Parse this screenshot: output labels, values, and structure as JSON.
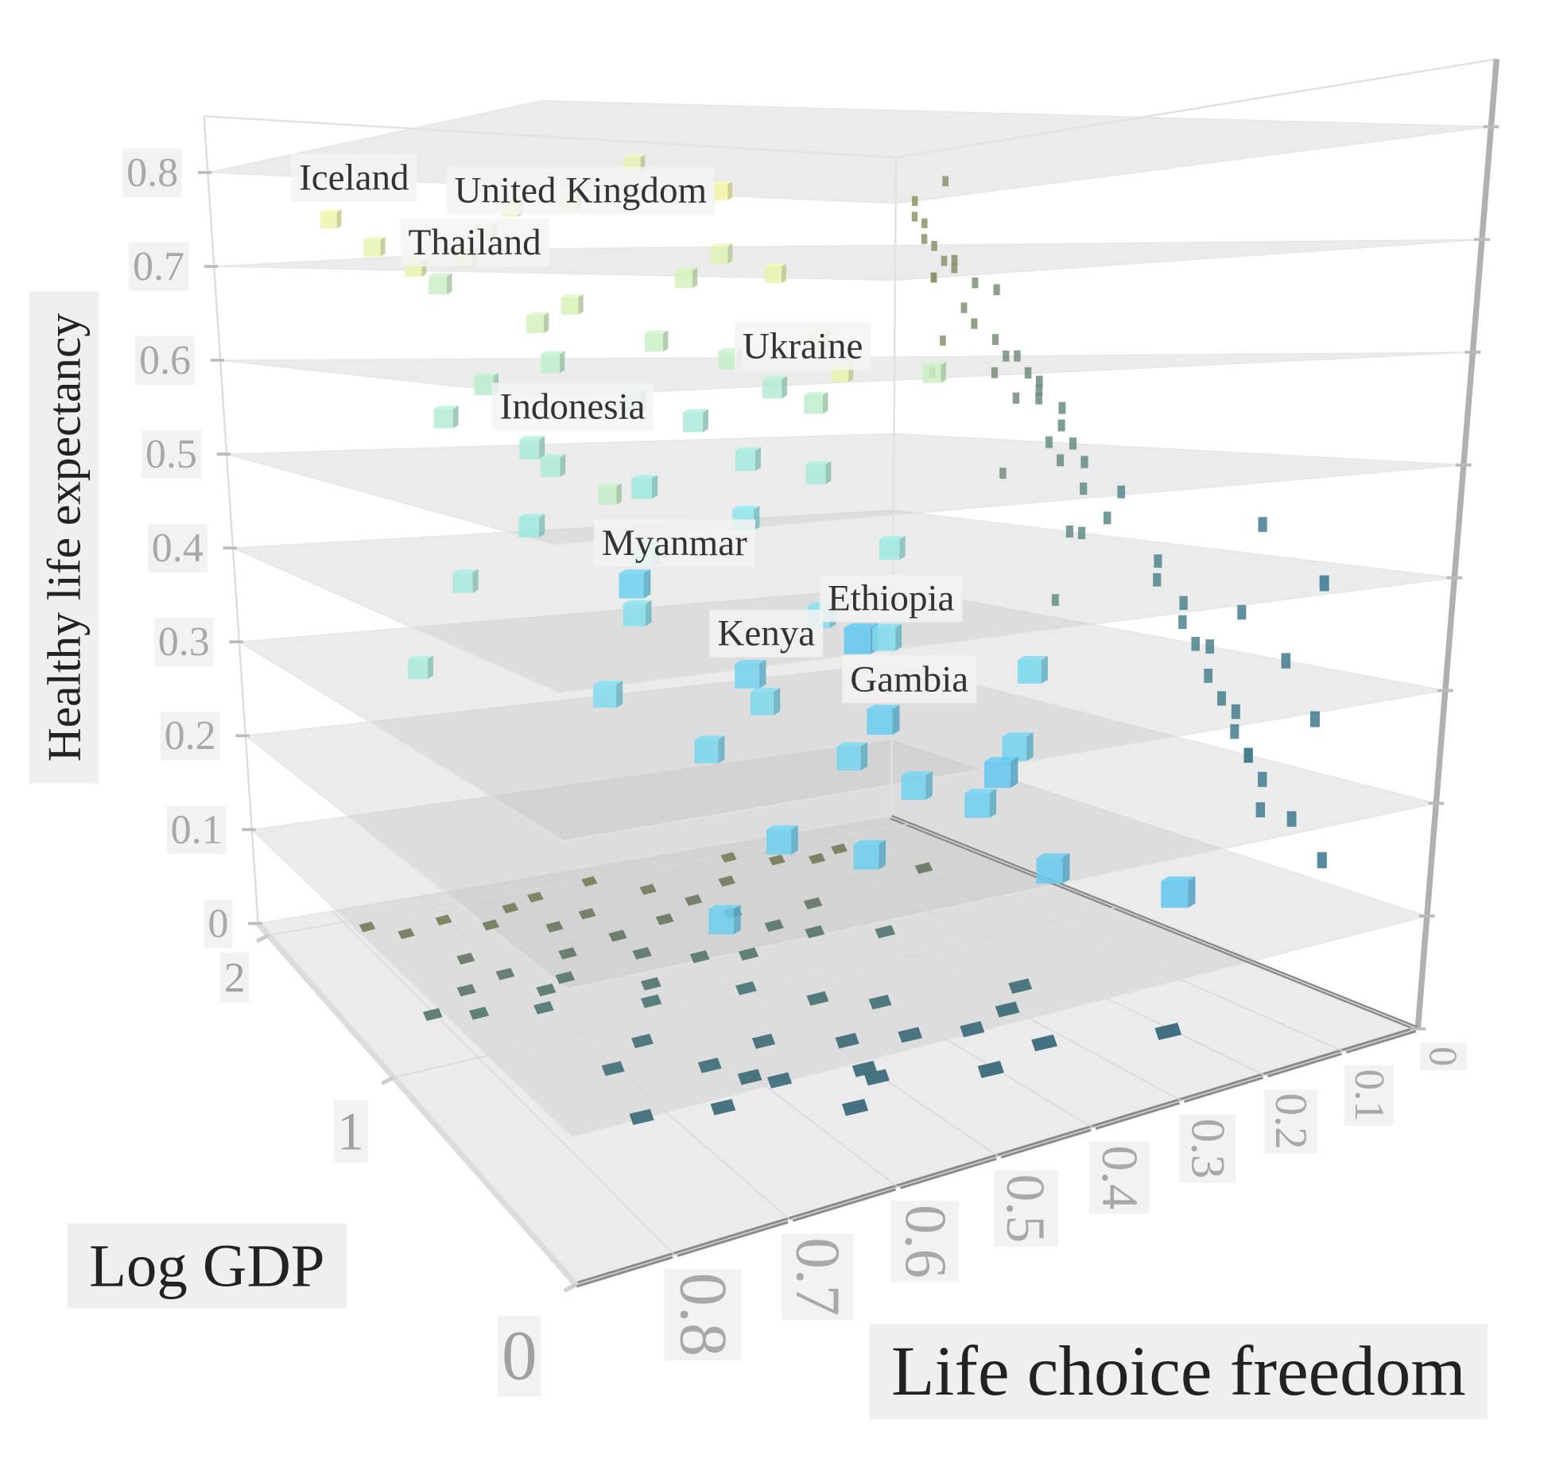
{
  "chart_data": {
    "type": "scatter3d",
    "x_label": "Life choice freedom",
    "y_label": "Log GDP",
    "z_label": "Healthy life expectancy",
    "xlim": [
      0,
      0.88
    ],
    "ylim": [
      0,
      2.1
    ],
    "zlim": [
      0,
      0.86
    ],
    "xticks": [
      0,
      0.1,
      0.2,
      0.3,
      0.4,
      0.5,
      0.6,
      0.7,
      0.8
    ],
    "yticks": [
      0,
      1,
      2
    ],
    "zticks": [
      0,
      0.1,
      0.2,
      0.3,
      0.4,
      0.5,
      0.6,
      0.7,
      0.8
    ],
    "color_by": "y",
    "colorscale": [
      "#4cb8f0",
      "#8fe6ec",
      "#fff7a0"
    ],
    "points": {
      "labels": [
        "Iceland",
        "United Kingdom",
        "Thailand",
        "Ukraine",
        "Indonesia",
        "Myanmar",
        "Ethiopia",
        "Kenya",
        "Gambia",
        null,
        null,
        null,
        null,
        null,
        null,
        null,
        null,
        null,
        null,
        null,
        null,
        null,
        null,
        null,
        null,
        null,
        null,
        null,
        null,
        null,
        null,
        null,
        null,
        null,
        null,
        null,
        null,
        null,
        null,
        null,
        null,
        null,
        null,
        null,
        null,
        null,
        null,
        null,
        null,
        null,
        null,
        null,
        null,
        null,
        null,
        null,
        null,
        null,
        null,
        null
      ],
      "x": [
        0.78,
        0.62,
        0.72,
        0.38,
        0.68,
        0.72,
        0.55,
        0.6,
        0.5,
        0.75,
        0.7,
        0.66,
        0.58,
        0.5,
        0.45,
        0.3,
        0.55,
        0.6,
        0.42,
        0.35,
        0.25,
        0.2,
        0.15,
        0.48,
        0.4,
        0.62,
        0.7,
        0.75,
        0.65,
        0.55,
        0.5,
        0.45,
        0.58,
        0.7,
        0.76,
        0.6,
        0.5,
        0.35,
        0.3,
        0.65,
        0.45,
        0.4,
        0.55,
        0.62,
        0.48,
        0.42,
        0.58,
        0.5,
        0.36,
        0.3,
        0.65,
        0.7,
        0.4,
        0.32,
        0.2,
        0.28,
        0.25,
        0.55,
        0.8,
        0.1
      ],
      "y": [
        1.95,
        1.9,
        1.6,
        1.4,
        1.3,
        0.55,
        0.35,
        0.6,
        0.45,
        1.85,
        1.9,
        1.8,
        1.95,
        2.0,
        1.85,
        2.0,
        1.75,
        1.7,
        1.7,
        1.8,
        1.9,
        1.85,
        1.9,
        1.6,
        1.55,
        1.5,
        1.45,
        1.4,
        1.35,
        1.4,
        1.3,
        1.25,
        1.2,
        1.2,
        1.25,
        1.1,
        1.05,
        1.3,
        1.5,
        0.9,
        0.9,
        0.8,
        0.75,
        0.7,
        0.65,
        0.6,
        0.55,
        0.5,
        0.55,
        0.6,
        0.5,
        0.8,
        0.35,
        0.4,
        0.3,
        1.2,
        0.7,
        1.55,
        1.3,
        1.6
      ],
      "z": [
        0.75,
        0.74,
        0.68,
        0.57,
        0.52,
        0.43,
        0.38,
        0.34,
        0.3,
        0.72,
        0.7,
        0.71,
        0.77,
        0.78,
        0.82,
        0.8,
        0.66,
        0.64,
        0.69,
        0.72,
        0.7,
        0.62,
        0.58,
        0.62,
        0.6,
        0.6,
        0.58,
        0.55,
        0.5,
        0.56,
        0.54,
        0.5,
        0.48,
        0.45,
        0.4,
        0.42,
        0.45,
        0.48,
        0.55,
        0.38,
        0.36,
        0.34,
        0.3,
        0.27,
        0.25,
        0.22,
        0.2,
        0.18,
        0.2,
        0.24,
        0.15,
        0.32,
        0.25,
        0.15,
        0.12,
        0.4,
        0.3,
        0.46,
        0.32,
        0.58
      ]
    }
  }
}
